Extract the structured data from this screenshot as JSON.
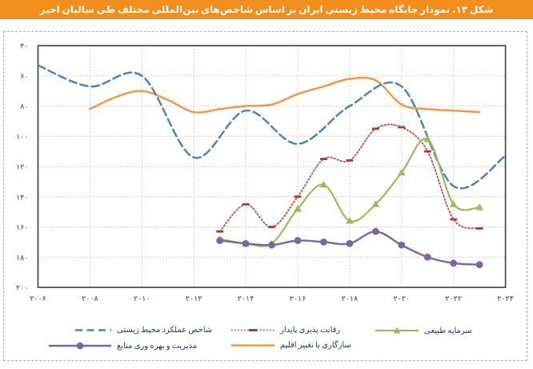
{
  "title": {
    "text": "شکل ۱۳. نمودار جایگاه محیط زیستی ایران بر اساس شاخص‌های بین‌المللی مختلف طی سالیان اخیر"
  },
  "colors": {
    "title_bar": "#F28E1E",
    "plot_frame": "#454545",
    "gridline": "#C9C9C9",
    "tick_text": "#2E4668",
    "epi_blue": "#4F81BD",
    "competitiveness_red": "#C0504D",
    "competitiveness_marker_red": "#A83B38",
    "natural_capital_green": "#9BBB59",
    "resource_purple": "#8064A2",
    "climate_orange": "#F79646"
  },
  "chart_data": {
    "type": "line",
    "title": "شکل ۱۳. نمودار جایگاه محیط زیستی ایران بر اساس شاخص‌های بین‌المللی مختلف طی سالیان اخیر",
    "xlim": [
      2006,
      2024
    ],
    "ylim": [
      40,
      200
    ],
    "y_axis_inverted": true,
    "grid": true,
    "legend_position": "bottom",
    "x_ticks": [
      2006,
      2008,
      2010,
      2012,
      2014,
      2016,
      2018,
      2020,
      2022,
      2024
    ],
    "x_tick_labels": [
      "۲۰۰۶",
      "۲۰۰۸",
      "۲۰۱۰",
      "۲۰۱۲",
      "۲۰۱۴",
      "۲۰۱۶",
      "۲۰۱۸",
      "۲۰۲۰",
      "۲۰۲۲",
      "۲۰۲۴"
    ],
    "y_ticks": [
      40,
      60,
      80,
      100,
      120,
      140,
      160,
      180,
      200
    ],
    "y_tick_labels": [
      "۴۰",
      "۶۰",
      "۸۰",
      "۱۰۰",
      "۱۲۰",
      "۱۴۰",
      "۱۶۰",
      "۱۸۰",
      "۲۰۰"
    ],
    "series": [
      {
        "name": "شاخص عملکرد محیط زیستی",
        "color": "#4F81BD",
        "line_style": "dashed",
        "marker": "none",
        "line_width": 2.5,
        "x": [
          2006,
          2008,
          2010,
          2012,
          2014,
          2016,
          2018,
          2020,
          2022,
          2024
        ],
        "values": [
          53,
          67,
          60,
          114,
          83,
          105,
          80,
          67,
          133,
          113
        ]
      },
      {
        "name": "رقابت پذیری پایدار",
        "color": "#C0504D",
        "marker_color": "#A83B38",
        "line_style": "dotted",
        "marker": "dash",
        "line_width": 1.8,
        "x": [
          2013,
          2014,
          2015,
          2016,
          2017,
          2018,
          2019,
          2020,
          2021,
          2022,
          2023
        ],
        "values": [
          163,
          145,
          160,
          140,
          115,
          116,
          95,
          94,
          110,
          155,
          161
        ]
      },
      {
        "name": "سرمایه طبیعی",
        "color": "#9BBB59",
        "line_style": "solid",
        "marker": "triangle",
        "line_width": 2.2,
        "x": [
          2013,
          2014,
          2015,
          2016,
          2017,
          2018,
          2019,
          2020,
          2021,
          2022,
          2023
        ],
        "values": [
          168,
          171,
          171,
          148,
          132,
          156,
          145,
          124,
          102,
          145,
          147
        ]
      },
      {
        "name": "مدیریت و بهره وری منابع",
        "color": "#8064A2",
        "line_style": "solid",
        "marker": "circle",
        "line_width": 2.4,
        "x": [
          2013,
          2014,
          2015,
          2016,
          2017,
          2018,
          2019,
          2020,
          2021,
          2022,
          2023
        ],
        "values": [
          169,
          171,
          172,
          169,
          170,
          171,
          163,
          172,
          180,
          184,
          185
        ]
      },
      {
        "name": "سازگاری با تغییر اقلیم",
        "color": "#F79646",
        "line_style": "solid",
        "marker": "none",
        "line_width": 2.5,
        "x": [
          2008,
          2009,
          2010,
          2011,
          2012,
          2013,
          2014,
          2015,
          2016,
          2017,
          2018,
          2019,
          2020,
          2021,
          2022,
          2023
        ],
        "values": [
          82,
          74,
          70,
          76,
          84,
          82,
          80,
          79,
          72,
          67,
          62,
          63,
          79,
          82,
          83,
          84
        ]
      }
    ]
  },
  "legend": {
    "rows": [
      [
        0,
        1,
        2
      ],
      [
        3,
        4
      ]
    ]
  }
}
